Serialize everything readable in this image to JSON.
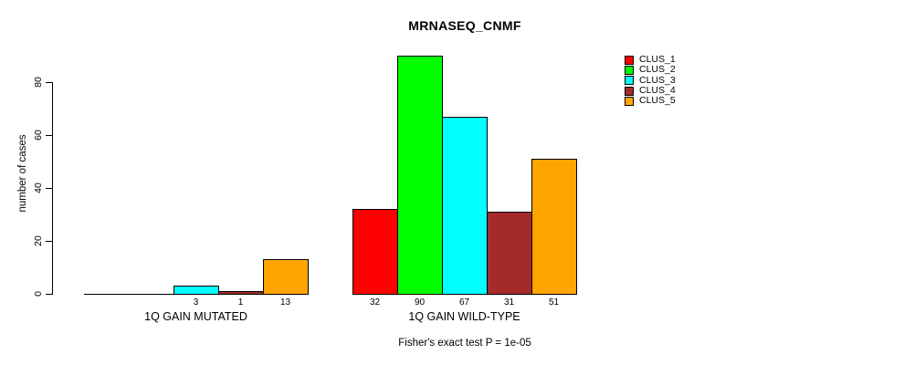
{
  "chart_data": {
    "type": "bar",
    "title": "MRNASEQ_CNMF",
    "xlabel": "",
    "ylabel": "number of cases",
    "ylim": [
      0,
      90
    ],
    "yticks": [
      0,
      20,
      40,
      60,
      80
    ],
    "grid": false,
    "legend_position": "top-right",
    "series_names": [
      "CLUS_1",
      "CLUS_2",
      "CLUS_3",
      "CLUS_4",
      "CLUS_5"
    ],
    "colors": [
      "#FF0000",
      "#00FF00",
      "#00FFFF",
      "#A52A2A",
      "#FFA500"
    ],
    "groups": [
      {
        "label": "1Q GAIN MUTATED",
        "values": [
          0,
          0,
          3,
          1,
          13
        ],
        "bar_labels": [
          "",
          "",
          "3",
          "1",
          "13"
        ]
      },
      {
        "label": "1Q GAIN WILD-TYPE",
        "values": [
          32,
          90,
          67,
          31,
          51
        ],
        "bar_labels": [
          "32",
          "90",
          "67",
          "31",
          "51"
        ]
      }
    ],
    "annotation": "Fisher's exact test P = 1e-05"
  }
}
